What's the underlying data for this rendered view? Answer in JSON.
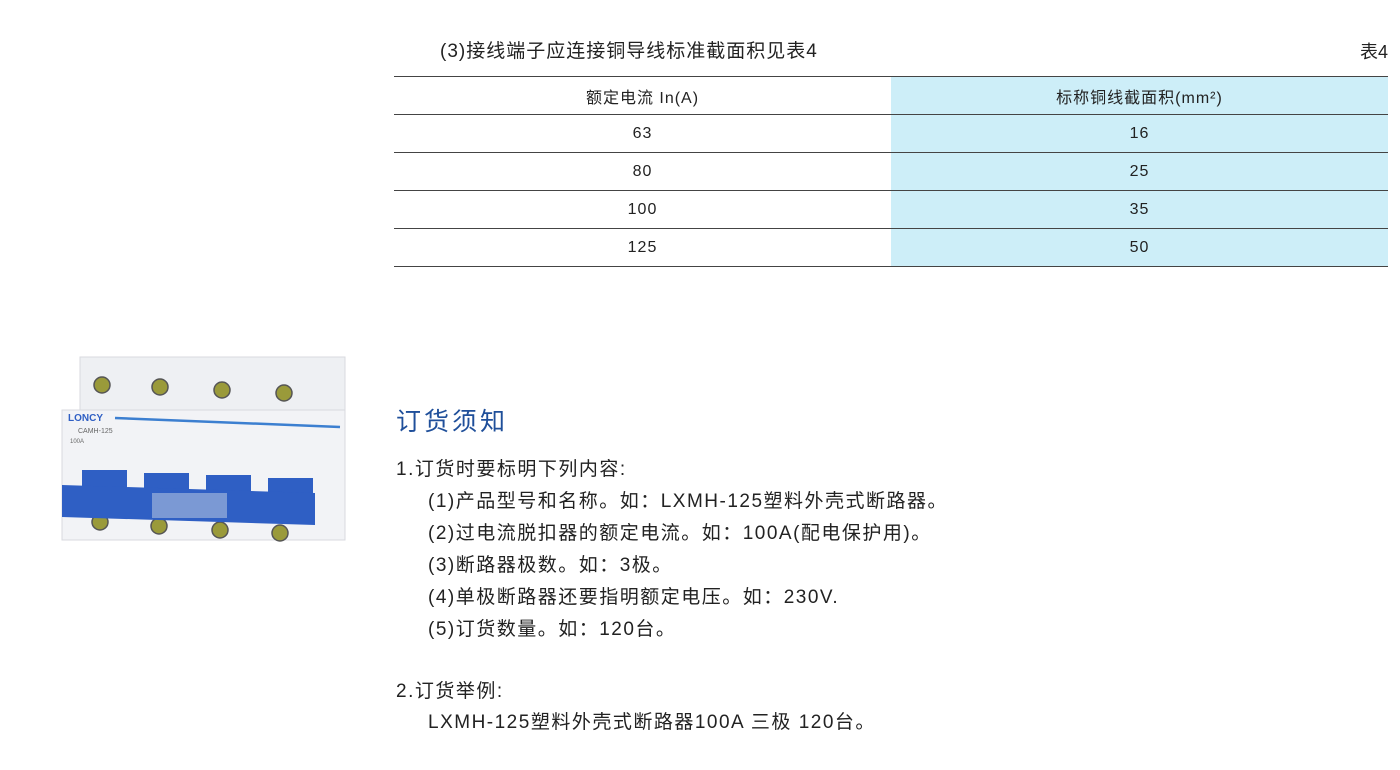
{
  "table4": {
    "caption": "(3)接线端子应连接铜导线标准截面积见表4",
    "table_number": "表4",
    "headers": [
      "额定电流 In(A)",
      "标称铜线截面积(mm²)"
    ],
    "rows": [
      [
        "63",
        "16"
      ],
      [
        "80",
        "25"
      ],
      [
        "100",
        "35"
      ],
      [
        "125",
        "50"
      ]
    ]
  },
  "product_image": {
    "brand": "LONCY",
    "model": "CAMH-125",
    "rating": "100A"
  },
  "ordering": {
    "heading": "订货须知",
    "item1": "1.订货时要标明下列内容:",
    "subitems": [
      "(1)产品型号和名称。如：LXMH-125塑料外壳式断路器。",
      "(2)过电流脱扣器的额定电流。如：100A(配电保护用)。",
      "(3)断路器极数。如：3极。",
      "(4)单极断路器还要指明额定电压。如：230V.",
      "(5)订货数量。如：120台。"
    ],
    "item2": "2.订货举例:",
    "example": "LXMH-125塑料外壳式断路器100A 三极 120台。"
  },
  "colors": {
    "table_highlight": "#cdeef8",
    "heading": "#1f4f9a",
    "handle": "#2f5fc4"
  }
}
